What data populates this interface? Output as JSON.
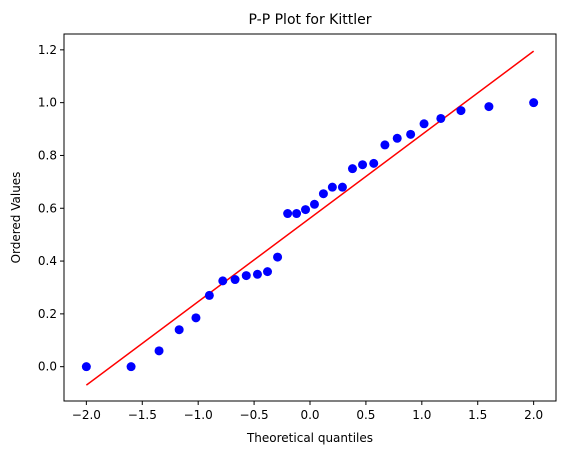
{
  "chart_data": {
    "type": "scatter",
    "title": "P-P Plot for Kittler",
    "xlabel": "Theoretical quantiles",
    "ylabel": "Ordered Values",
    "xlim": [
      -2.2,
      2.2
    ],
    "ylim": [
      -0.13,
      1.26
    ],
    "x_ticks": [
      -2.0,
      -1.5,
      -1.0,
      -0.5,
      0.0,
      0.5,
      1.0,
      1.5,
      2.0
    ],
    "x_tick_labels": [
      "−2.0",
      "−1.5",
      "−1.0",
      "−0.5",
      "0.0",
      "0.5",
      "1.0",
      "1.5",
      "2.0"
    ],
    "y_ticks": [
      0.0,
      0.2,
      0.4,
      0.6,
      0.8,
      1.0,
      1.2
    ],
    "y_tick_labels": [
      "0.0",
      "0.2",
      "0.4",
      "0.6",
      "0.8",
      "1.0",
      "1.2"
    ],
    "grid": false,
    "colors": {
      "points": "#0000ff",
      "fit_line": "#ff0000"
    },
    "points": [
      {
        "x": -2.0,
        "y": 0.0
      },
      {
        "x": -1.6,
        "y": 0.0
      },
      {
        "x": -1.35,
        "y": 0.06
      },
      {
        "x": -1.17,
        "y": 0.14
      },
      {
        "x": -1.02,
        "y": 0.185
      },
      {
        "x": -0.9,
        "y": 0.27
      },
      {
        "x": -0.78,
        "y": 0.325
      },
      {
        "x": -0.67,
        "y": 0.33
      },
      {
        "x": -0.57,
        "y": 0.345
      },
      {
        "x": -0.47,
        "y": 0.35
      },
      {
        "x": -0.38,
        "y": 0.36
      },
      {
        "x": -0.29,
        "y": 0.415
      },
      {
        "x": -0.2,
        "y": 0.58
      },
      {
        "x": -0.12,
        "y": 0.58
      },
      {
        "x": -0.04,
        "y": 0.595
      },
      {
        "x": 0.04,
        "y": 0.615
      },
      {
        "x": 0.12,
        "y": 0.655
      },
      {
        "x": 0.2,
        "y": 0.68
      },
      {
        "x": 0.29,
        "y": 0.68
      },
      {
        "x": 0.38,
        "y": 0.75
      },
      {
        "x": 0.47,
        "y": 0.765
      },
      {
        "x": 0.57,
        "y": 0.77
      },
      {
        "x": 0.67,
        "y": 0.84
      },
      {
        "x": 0.78,
        "y": 0.865
      },
      {
        "x": 0.9,
        "y": 0.88
      },
      {
        "x": 1.02,
        "y": 0.92
      },
      {
        "x": 1.17,
        "y": 0.94
      },
      {
        "x": 1.35,
        "y": 0.97
      },
      {
        "x": 1.6,
        "y": 0.985
      },
      {
        "x": 2.0,
        "y": 1.0
      }
    ],
    "fit_line": {
      "x": [
        -2.0,
        2.0
      ],
      "y": [
        -0.07,
        1.195
      ]
    }
  }
}
